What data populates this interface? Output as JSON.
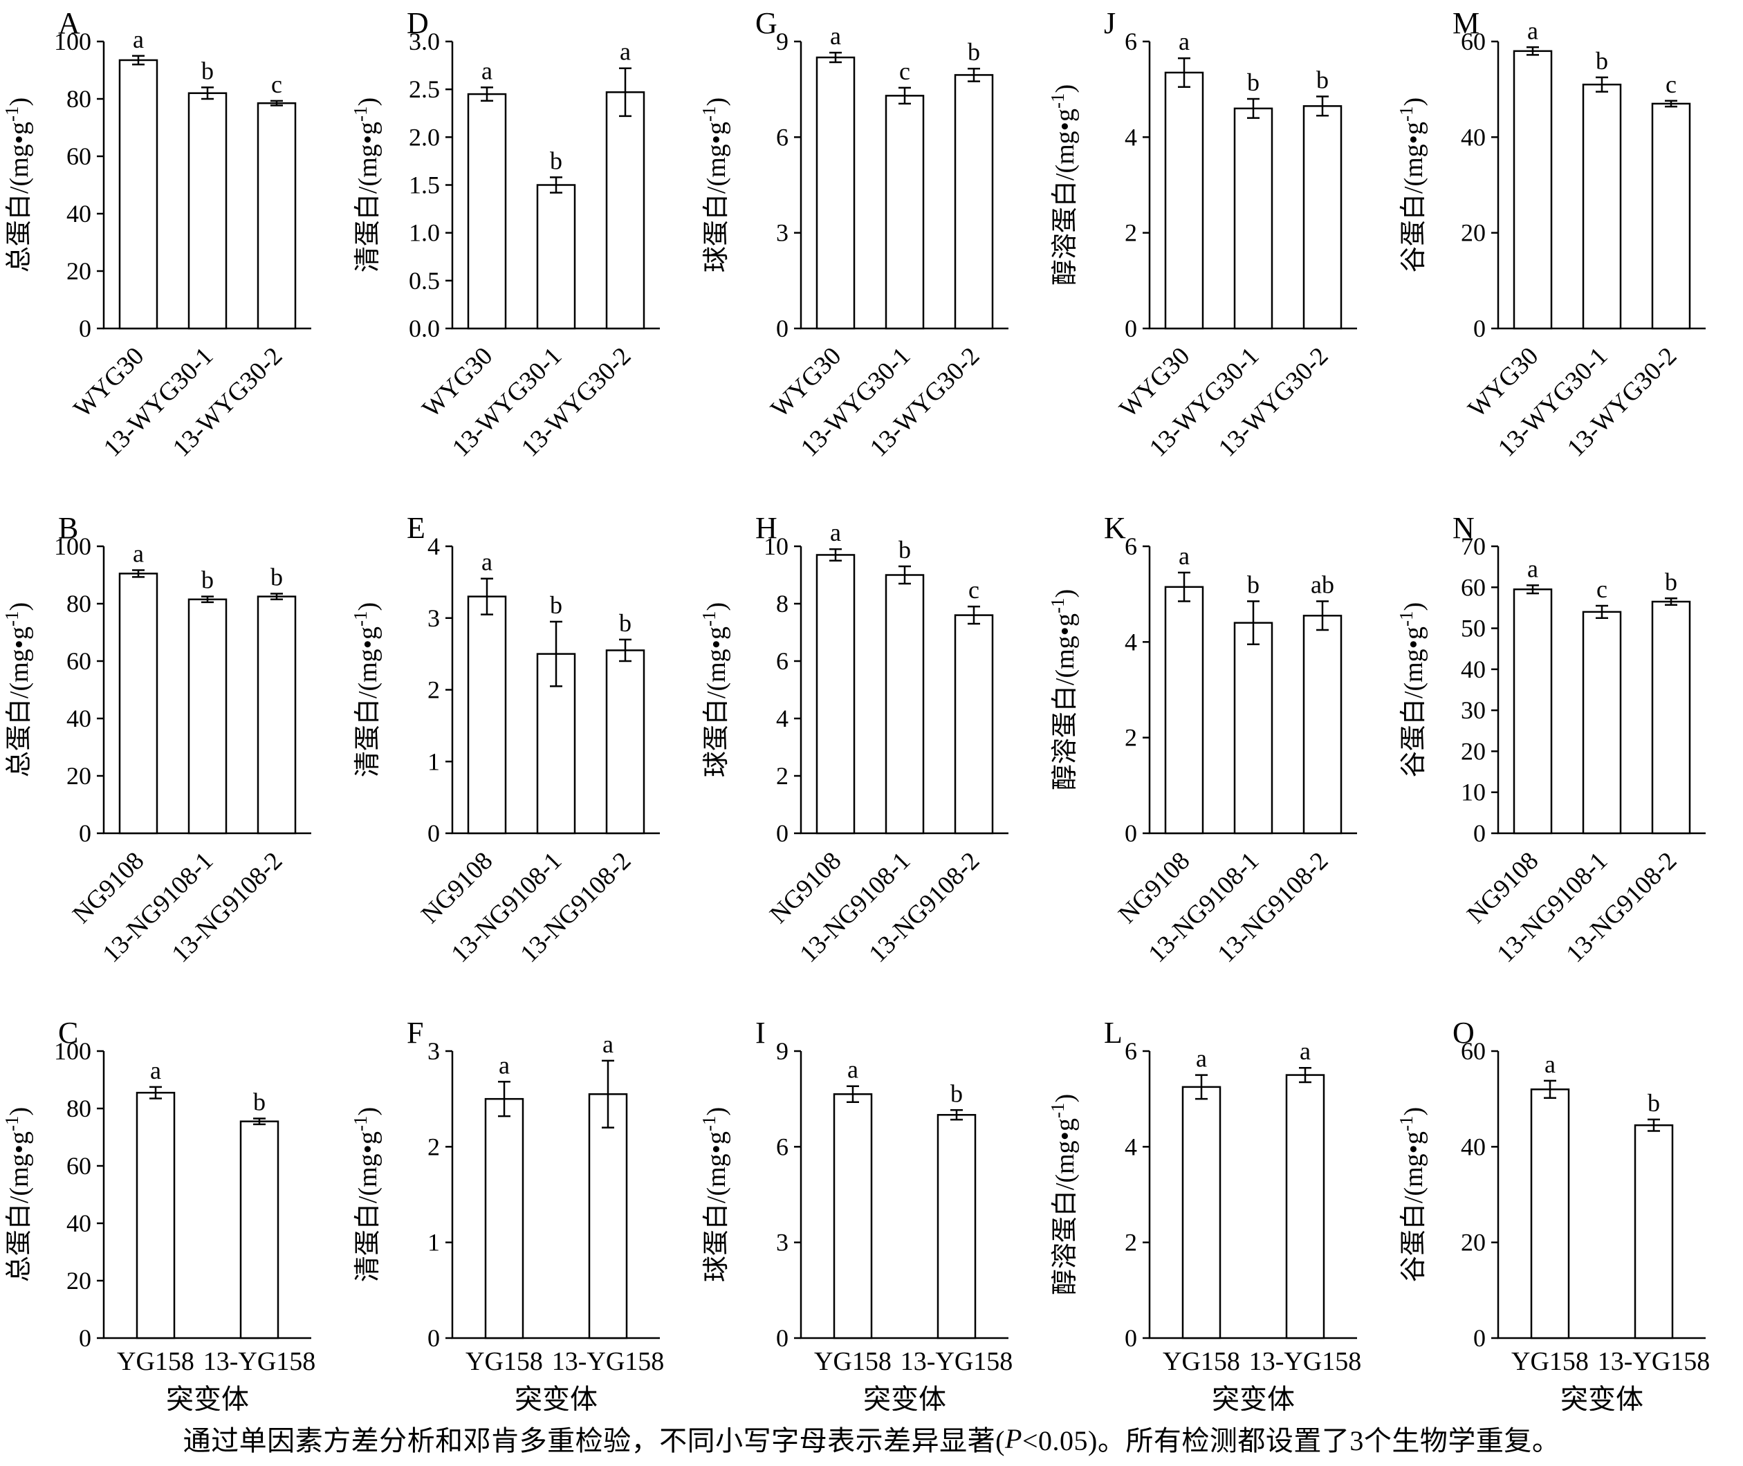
{
  "figure": {
    "caption_pre": "通过单因素方差分析和邓肯多重检验，不同小写字母表示差异显著(",
    "caption_italic": "P",
    "caption_post": "<0.05)。所有检测都设置了3个生物学重复。"
  },
  "chart_data": [
    {
      "type": "bar",
      "panel": "A",
      "ylabel": "总蛋白/(mg•g⁻¹)",
      "categories": [
        "WYG30",
        "13-WYG30-1",
        "13-WYG30-2"
      ],
      "values": [
        93.5,
        82,
        78.5
      ],
      "errors": [
        1.5,
        2,
        0.8
      ],
      "letters": [
        "a",
        "b",
        "c"
      ],
      "ylim": [
        0,
        100
      ],
      "yticks": [
        "0",
        "20",
        "40",
        "60",
        "80",
        "100"
      ],
      "xlabel": "",
      "rotated_xticks": true
    },
    {
      "type": "bar",
      "panel": "D",
      "ylabel": "清蛋白/(mg•g⁻¹)",
      "categories": [
        "WYG30",
        "13-WYG30-1",
        "13-WYG30-2"
      ],
      "values": [
        2.45,
        1.5,
        2.47
      ],
      "errors": [
        0.07,
        0.08,
        0.25
      ],
      "letters": [
        "a",
        "b",
        "a"
      ],
      "ylim": [
        0,
        3
      ],
      "yticks": [
        "0.0",
        "0.5",
        "1.0",
        "1.5",
        "2.0",
        "2.5",
        "3.0"
      ],
      "xlabel": "",
      "rotated_xticks": true
    },
    {
      "type": "bar",
      "panel": "G",
      "ylabel": "球蛋白/(mg•g⁻¹)",
      "categories": [
        "WYG30",
        "13-WYG30-1",
        "13-WYG30-2"
      ],
      "values": [
        8.5,
        7.3,
        7.95
      ],
      "errors": [
        0.15,
        0.25,
        0.2
      ],
      "letters": [
        "a",
        "c",
        "b"
      ],
      "ylim": [
        0,
        9
      ],
      "yticks": [
        "0",
        "3",
        "6",
        "9"
      ],
      "xlabel": "",
      "rotated_xticks": true
    },
    {
      "type": "bar",
      "panel": "J",
      "ylabel": "醇溶蛋白/(mg•g⁻¹)",
      "categories": [
        "WYG30",
        "13-WYG30-1",
        "13-WYG30-2"
      ],
      "values": [
        5.35,
        4.6,
        4.65
      ],
      "errors": [
        0.3,
        0.2,
        0.2
      ],
      "letters": [
        "a",
        "b",
        "b"
      ],
      "ylim": [
        0,
        6
      ],
      "yticks": [
        "0",
        "2",
        "4",
        "6"
      ],
      "xlabel": "",
      "rotated_xticks": true
    },
    {
      "type": "bar",
      "panel": "M",
      "ylabel": "谷蛋白/(mg•g⁻¹)",
      "categories": [
        "WYG30",
        "13-WYG30-1",
        "13-WYG30-2"
      ],
      "values": [
        58,
        51,
        47
      ],
      "errors": [
        0.8,
        1.5,
        0.6
      ],
      "letters": [
        "a",
        "b",
        "c"
      ],
      "ylim": [
        0,
        60
      ],
      "yticks": [
        "0",
        "20",
        "40",
        "60"
      ],
      "xlabel": "",
      "rotated_xticks": true
    },
    {
      "type": "bar",
      "panel": "B",
      "ylabel": "总蛋白/(mg•g⁻¹)",
      "categories": [
        "NG9108",
        "13-NG9108-1",
        "13-NG9108-2"
      ],
      "values": [
        90.5,
        81.5,
        82.5
      ],
      "errors": [
        1.2,
        1,
        1
      ],
      "letters": [
        "a",
        "b",
        "b"
      ],
      "ylim": [
        0,
        100
      ],
      "yticks": [
        "0",
        "20",
        "40",
        "60",
        "80",
        "100"
      ],
      "xlabel": "",
      "rotated_xticks": true
    },
    {
      "type": "bar",
      "panel": "E",
      "ylabel": "清蛋白/(mg•g⁻¹)",
      "categories": [
        "NG9108",
        "13-NG9108-1",
        "13-NG9108-2"
      ],
      "values": [
        3.3,
        2.5,
        2.55
      ],
      "errors": [
        0.25,
        0.45,
        0.15
      ],
      "letters": [
        "a",
        "b",
        "b"
      ],
      "ylim": [
        0,
        4
      ],
      "yticks": [
        "0",
        "1",
        "2",
        "3",
        "4"
      ],
      "xlabel": "",
      "rotated_xticks": true
    },
    {
      "type": "bar",
      "panel": "H",
      "ylabel": "球蛋白/(mg•g⁻¹)",
      "categories": [
        "NG9108",
        "13-NG9108-1",
        "13-NG9108-2"
      ],
      "values": [
        9.7,
        9.0,
        7.6
      ],
      "errors": [
        0.2,
        0.3,
        0.3
      ],
      "letters": [
        "a",
        "b",
        "c"
      ],
      "ylim": [
        0,
        10
      ],
      "yticks": [
        "0",
        "2",
        "4",
        "6",
        "8",
        "10"
      ],
      "xlabel": "",
      "rotated_xticks": true
    },
    {
      "type": "bar",
      "panel": "K",
      "ylabel": "醇溶蛋白/(mg•g⁻¹)",
      "categories": [
        "NG9108",
        "13-NG9108-1",
        "13-NG9108-2"
      ],
      "values": [
        5.15,
        4.4,
        4.55
      ],
      "errors": [
        0.3,
        0.45,
        0.3
      ],
      "letters": [
        "a",
        "b",
        "ab"
      ],
      "ylim": [
        0,
        6
      ],
      "yticks": [
        "0",
        "2",
        "4",
        "6"
      ],
      "xlabel": "",
      "rotated_xticks": true
    },
    {
      "type": "bar",
      "panel": "N",
      "ylabel": "谷蛋白/(mg•g⁻¹)",
      "categories": [
        "NG9108",
        "13-NG9108-1",
        "13-NG9108-2"
      ],
      "values": [
        59.5,
        54,
        56.5
      ],
      "errors": [
        1,
        1.5,
        0.8
      ],
      "letters": [
        "a",
        "c",
        "b"
      ],
      "ylim": [
        0,
        70
      ],
      "yticks": [
        "0",
        "10",
        "20",
        "30",
        "40",
        "50",
        "60",
        "70"
      ],
      "xlabel": "",
      "rotated_xticks": true
    },
    {
      "type": "bar",
      "panel": "C",
      "ylabel": "总蛋白/(mg•g⁻¹)",
      "categories": [
        "YG158",
        "13-YG158"
      ],
      "values": [
        85.5,
        75.5
      ],
      "errors": [
        2,
        1
      ],
      "letters": [
        "a",
        "b"
      ],
      "ylim": [
        0,
        100
      ],
      "yticks": [
        "0",
        "20",
        "40",
        "60",
        "80",
        "100"
      ],
      "xlabel": "突变体",
      "rotated_xticks": false
    },
    {
      "type": "bar",
      "panel": "F",
      "ylabel": "清蛋白/(mg•g⁻¹)",
      "categories": [
        "YG158",
        "13-YG158"
      ],
      "values": [
        2.5,
        2.55
      ],
      "errors": [
        0.18,
        0.35
      ],
      "letters": [
        "a",
        "a"
      ],
      "ylim": [
        0,
        3
      ],
      "yticks": [
        "0",
        "1",
        "2",
        "3"
      ],
      "xlabel": "突变体",
      "rotated_xticks": false
    },
    {
      "type": "bar",
      "panel": "I",
      "ylabel": "球蛋白/(mg•g⁻¹)",
      "categories": [
        "YG158",
        "13-YG158"
      ],
      "values": [
        7.65,
        7.0
      ],
      "errors": [
        0.25,
        0.15
      ],
      "letters": [
        "a",
        "b"
      ],
      "ylim": [
        0,
        9
      ],
      "yticks": [
        "0",
        "3",
        "6",
        "9"
      ],
      "xlabel": "突变体",
      "rotated_xticks": false
    },
    {
      "type": "bar",
      "panel": "L",
      "ylabel": "醇溶蛋白/(mg•g⁻¹)",
      "categories": [
        "YG158",
        "13-YG158"
      ],
      "values": [
        5.25,
        5.5
      ],
      "errors": [
        0.25,
        0.15
      ],
      "letters": [
        "a",
        "a"
      ],
      "ylim": [
        0,
        6
      ],
      "yticks": [
        "0",
        "2",
        "4",
        "6"
      ],
      "xlabel": "突变体",
      "rotated_xticks": false
    },
    {
      "type": "bar",
      "panel": "O",
      "ylabel": "谷蛋白/(mg•g⁻¹)",
      "categories": [
        "YG158",
        "13-YG158"
      ],
      "values": [
        52,
        44.5
      ],
      "errors": [
        1.8,
        1.2
      ],
      "letters": [
        "a",
        "b"
      ],
      "ylim": [
        0,
        60
      ],
      "yticks": [
        "0",
        "20",
        "40",
        "60"
      ],
      "xlabel": "突变体",
      "rotated_xticks": false
    }
  ]
}
